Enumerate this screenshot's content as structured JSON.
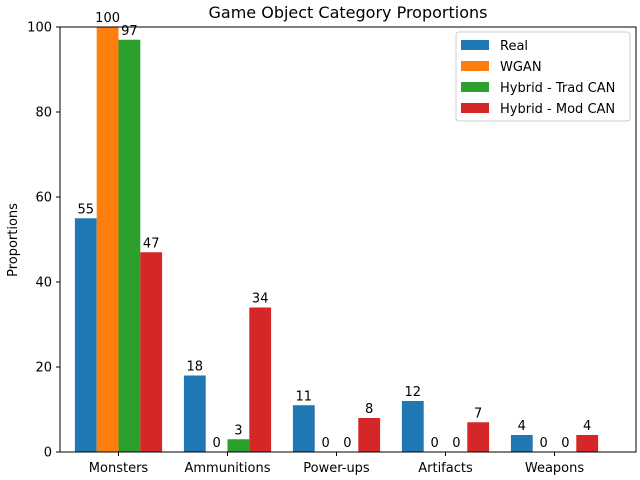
{
  "chart_data": {
    "type": "bar",
    "title": "Game Object Category Proportions",
    "xlabel": "",
    "ylabel": "Proportions",
    "categories": [
      "Monsters",
      "Ammunitions",
      "Power-ups",
      "Artifacts",
      "Weapons"
    ],
    "series": [
      {
        "name": "Real",
        "values": [
          55,
          18,
          11,
          12,
          4
        ],
        "color": "#1f77b4"
      },
      {
        "name": "WGAN",
        "values": [
          100,
          0,
          0,
          0,
          0
        ],
        "color": "#ff7f0e"
      },
      {
        "name": "Hybrid - Trad CAN",
        "values": [
          97,
          3,
          0,
          0,
          0
        ],
        "color": "#2ca02c"
      },
      {
        "name": "Hybrid - Mod CAN",
        "values": [
          47,
          34,
          8,
          7,
          4
        ],
        "color": "#d62728"
      }
    ],
    "ylim": [
      0,
      100
    ],
    "yticks": [
      0,
      20,
      40,
      60,
      80,
      100
    ],
    "grid": false,
    "legend_position": "top-right"
  }
}
